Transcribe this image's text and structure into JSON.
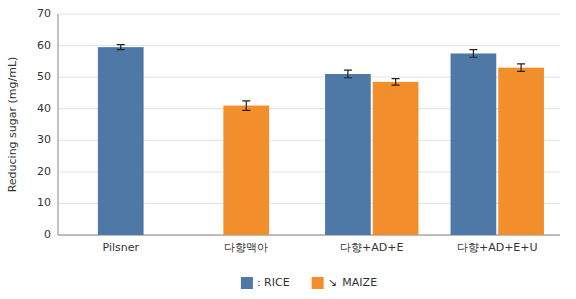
{
  "chart_data": {
    "type": "bar",
    "categories": [
      "Pilsner",
      "다향맥아",
      "다향+AD+E",
      "다향+AD+E+U"
    ],
    "series": [
      {
        "name": ": RICE",
        "color": "#4e79a7",
        "values": [
          59.5,
          null,
          51.0,
          57.5
        ],
        "errors": [
          0.8,
          null,
          1.2,
          1.2
        ]
      },
      {
        "name": " MAIZE",
        "color": "#f28e2b",
        "values": [
          null,
          41.0,
          48.5,
          53.0
        ],
        "errors": [
          null,
          1.5,
          1.0,
          1.2
        ]
      }
    ],
    "y_label": "Reducing sugar (mg/mL)",
    "ylim": [
      0,
      70
    ],
    "yticks": [
      0,
      10,
      20,
      30,
      40,
      50,
      60,
      70
    ],
    "grid": true,
    "legend": "bottom",
    "annotations": [
      "↘"
    ]
  }
}
